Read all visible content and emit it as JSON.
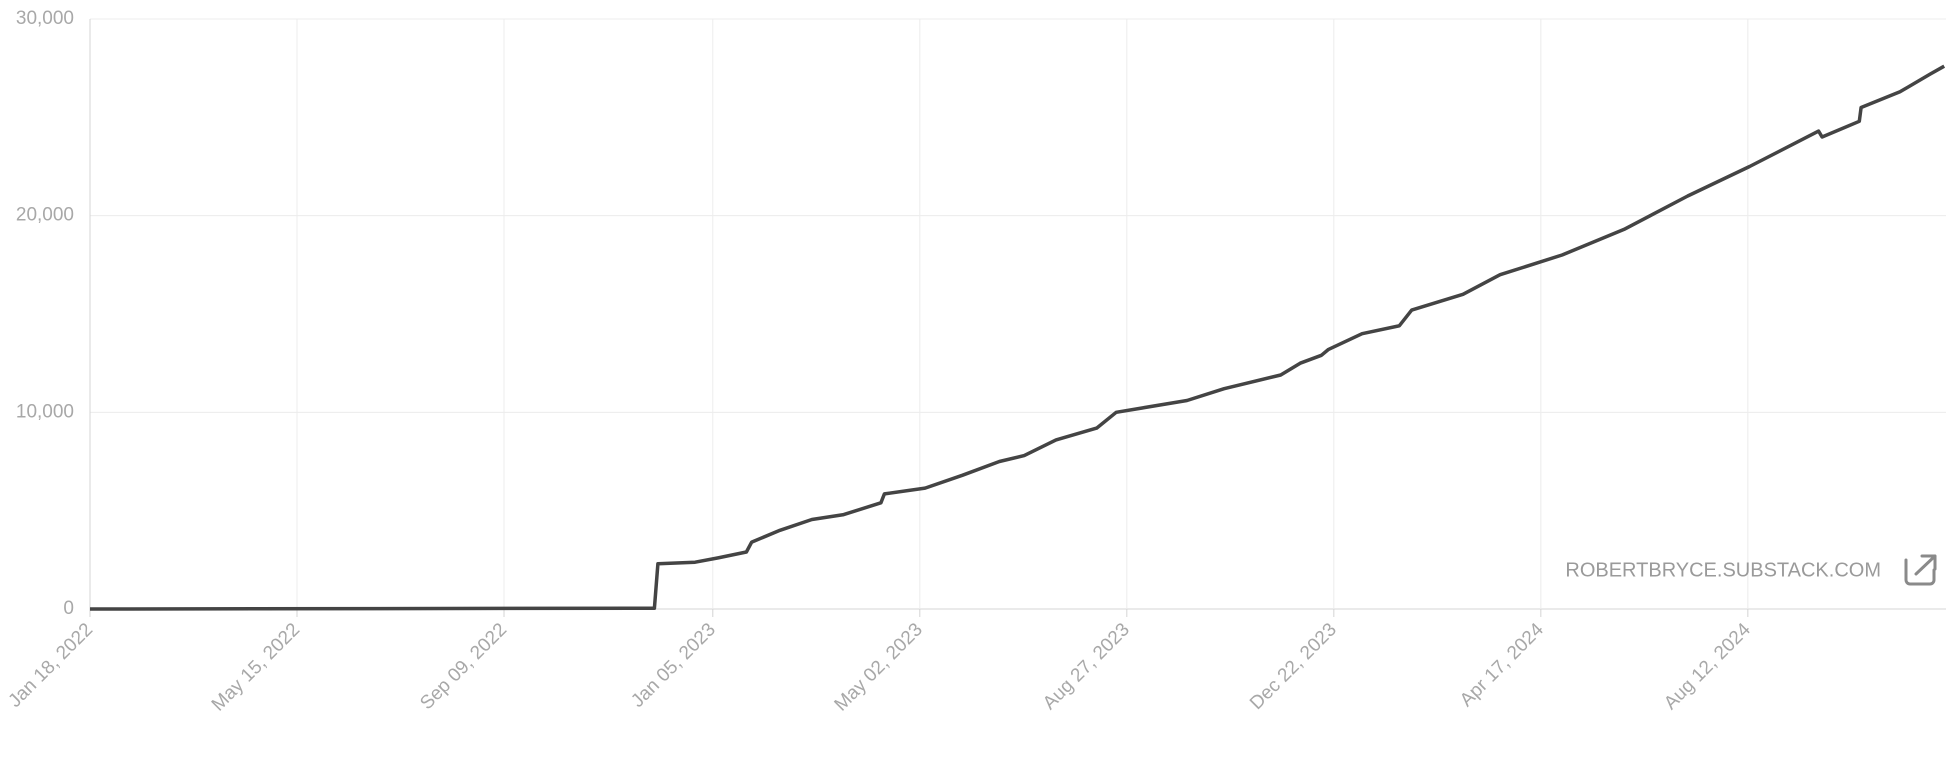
{
  "chart_data": {
    "type": "line",
    "watermark": "ROBERTBRYCE.SUBSTACK.COM",
    "x": [
      "2022-01-18",
      "2022-12-03",
      "2022-12-05",
      "2022-12-26",
      "2023-01-08",
      "2023-01-24",
      "2023-01-27",
      "2023-02-12",
      "2023-03-02",
      "2023-03-20",
      "2023-04-10",
      "2023-04-12",
      "2023-05-05",
      "2023-05-26",
      "2023-06-16",
      "2023-06-30",
      "2023-07-18",
      "2023-08-10",
      "2023-08-21",
      "2023-09-30",
      "2023-10-21",
      "2023-11-22",
      "2023-12-03",
      "2023-12-15",
      "2023-12-19",
      "2024-01-07",
      "2024-01-28",
      "2024-02-04",
      "2024-03-04",
      "2024-03-25",
      "2024-04-29",
      "2024-06-03",
      "2024-07-09",
      "2024-08-13",
      "2024-09-21",
      "2024-09-23",
      "2024-10-14",
      "2024-10-15",
      "2024-11-06",
      "2024-11-23",
      "2024-12-01"
    ],
    "values": [
      0,
      40,
      2300,
      2380,
      2600,
      2900,
      3400,
      4000,
      4550,
      4800,
      5400,
      5850,
      6150,
      6800,
      7500,
      7800,
      8600,
      9200,
      10000,
      10600,
      11200,
      11900,
      12500,
      12900,
      13200,
      14000,
      14400,
      15200,
      16000,
      17000,
      18000,
      19300,
      21000,
      22500,
      24300,
      24000,
      24800,
      25500,
      26300,
      27200,
      27600
    ],
    "color": "#444444",
    "xlim": [
      "2022-01-18",
      "2024-12-02"
    ],
    "xticks": [
      {
        "value": "2022-01-18",
        "label": "Jan 18, 2022"
      },
      {
        "value": "2022-05-15",
        "label": "May 15, 2022"
      },
      {
        "value": "2022-09-09",
        "label": "Sep 09, 2022"
      },
      {
        "value": "2023-01-05",
        "label": "Jan 05, 2023"
      },
      {
        "value": "2023-05-02",
        "label": "May 02, 2023"
      },
      {
        "value": "2023-08-27",
        "label": "Aug 27, 2023"
      },
      {
        "value": "2023-12-22",
        "label": "Dec 22, 2023"
      },
      {
        "value": "2024-04-17",
        "label": "Apr 17, 2024"
      },
      {
        "value": "2024-08-12",
        "label": "Aug 12, 2024"
      }
    ],
    "ylim": [
      0,
      30000
    ],
    "yticks": [
      0,
      {
        "value": 10000,
        "label": "10,000"
      },
      {
        "value": 20000,
        "label": "20,000"
      },
      {
        "value": 30000,
        "label": "30,000"
      }
    ],
    "grid": true
  }
}
